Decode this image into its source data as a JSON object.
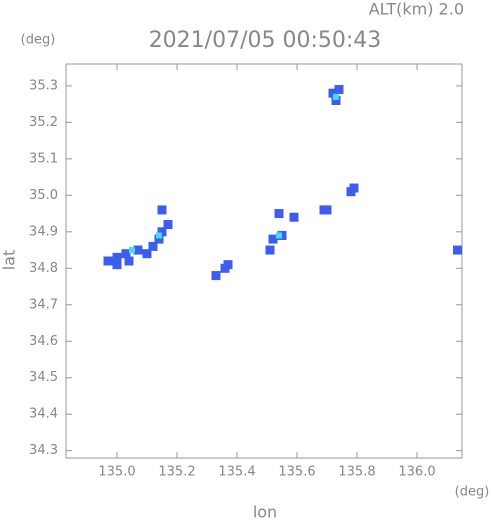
{
  "chart_data": {
    "type": "scatter",
    "title": "2021/07/05 00:50:43",
    "subtitle": "ALT(km) 2.0",
    "x_label": "lon",
    "y_label": "lat",
    "x_unit": "(deg)",
    "y_unit": "(deg)",
    "xlim": [
      134.83,
      136.15
    ],
    "ylim": [
      34.28,
      35.36
    ],
    "xticks": [
      {
        "value": 135,
        "label": "135.0"
      },
      135.2,
      135.4,
      135.6,
      135.8,
      {
        "value": 136,
        "label": "136.0"
      }
    ],
    "yticks": [
      34.3,
      34.4,
      34.5,
      34.6,
      34.7,
      {
        "value": 34.8,
        "label": "34.8"
      },
      34.9,
      {
        "value": 35,
        "label": "35.0"
      },
      35.1,
      35.2,
      35.3
    ],
    "series": [
      {
        "color": "#3d5cf0",
        "x": [
          134.97,
          135.0,
          135.0,
          135.03,
          135.04,
          135.07,
          135.1,
          135.12,
          135.14,
          135.15,
          135.17,
          135.15,
          135.33,
          135.36,
          135.37,
          135.51,
          135.52,
          135.55,
          135.54,
          135.59,
          135.69,
          135.7,
          135.78,
          135.79,
          135.72,
          135.73,
          135.74,
          136.15
        ],
        "values": [
          34.82,
          34.81,
          34.83,
          34.84,
          34.82,
          34.85,
          34.84,
          34.86,
          34.88,
          34.9,
          34.92,
          34.96,
          34.78,
          34.8,
          34.81,
          34.85,
          34.88,
          34.89,
          34.95,
          34.94,
          34.96,
          34.96,
          35.01,
          35.02,
          35.28,
          35.26,
          35.29,
          34.85
        ]
      },
      {
        "color": "#40e0f0",
        "x": [
          135.05,
          135.14,
          135.54,
          135.73
        ],
        "values": [
          34.85,
          34.89,
          34.89,
          35.27
        ]
      }
    ]
  }
}
